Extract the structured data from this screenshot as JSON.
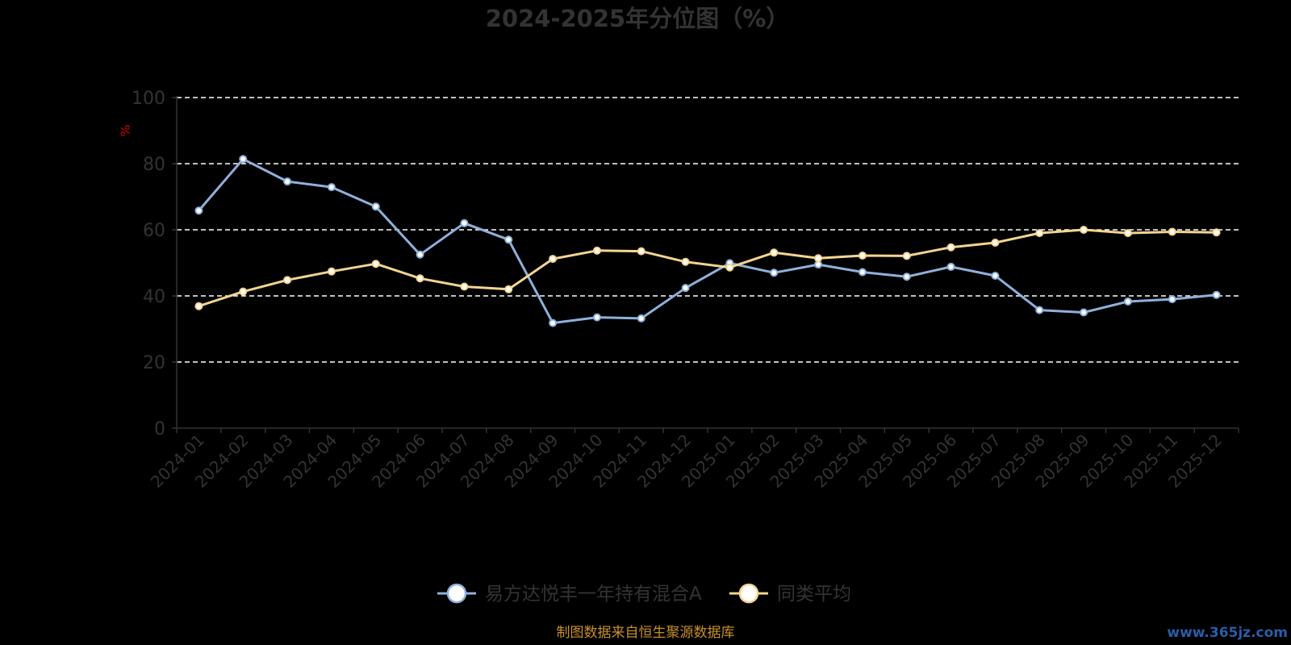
{
  "title": "2024-2025年分位图（%）",
  "source_note": "制图数据来自恒生聚源数据库",
  "watermark": "www.365jz.com",
  "y_unit": "%",
  "chart_data": {
    "type": "line",
    "title": "2024-2025年分位图（%）",
    "ylabel": "%",
    "ylim": [
      0,
      100
    ],
    "yticks": [
      0,
      20,
      40,
      60,
      80,
      100
    ],
    "grid": true,
    "legend_position": "bottom",
    "categories": [
      "2024-01",
      "2024-02",
      "2024-03",
      "2024-04",
      "2024-05",
      "2024-06",
      "2024-07",
      "2024-08",
      "2024-09",
      "2024-10",
      "2024-11",
      "2024-12",
      "2025-01",
      "2025-02",
      "2025-03",
      "2025-04",
      "2025-05",
      "2025-06",
      "2025-07",
      "2025-08",
      "2025-09",
      "2025-10",
      "2025-11",
      "2025-12"
    ],
    "series": [
      {
        "name": "易方达悦丰一年持有混合A",
        "color": "#8fb0dc",
        "values": [
          65.8,
          81.4,
          74.6,
          72.9,
          67.0,
          52.5,
          62.0,
          57.0,
          31.8,
          33.5,
          33.2,
          42.4,
          49.9,
          47.0,
          49.5,
          47.2,
          45.8,
          48.8,
          46.1,
          35.7,
          35.0,
          38.3,
          39.0,
          40.3
        ]
      },
      {
        "name": "同类平均",
        "color": "#f5d491",
        "values": [
          36.9,
          41.3,
          44.8,
          47.4,
          49.7,
          45.3,
          42.8,
          42.0,
          51.2,
          53.7,
          53.5,
          50.3,
          48.6,
          53.1,
          51.4,
          52.2,
          52.1,
          54.7,
          56.1,
          59.0,
          60.0,
          59.0,
          59.4,
          59.2
        ]
      }
    ]
  }
}
